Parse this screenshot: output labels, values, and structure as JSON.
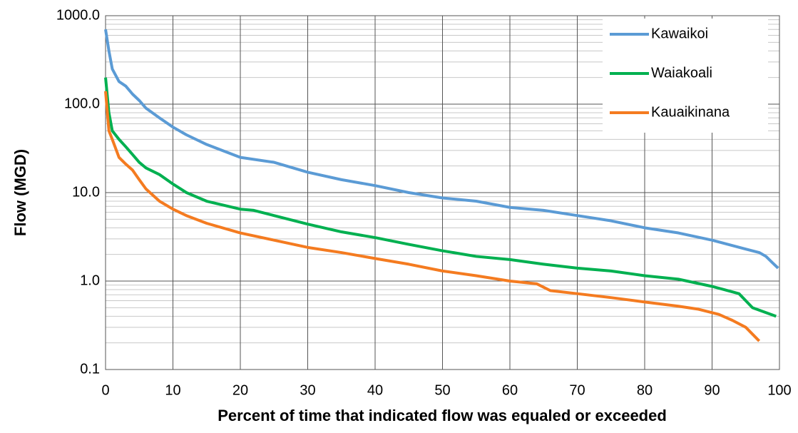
{
  "chart_data": {
    "type": "line",
    "xlabel": "Percent of time that indicated flow was equaled or exceeded",
    "ylabel": "Flow (MGD)",
    "xlim": [
      0,
      100
    ],
    "xticks": [
      0,
      10,
      20,
      30,
      40,
      50,
      60,
      70,
      80,
      90,
      100
    ],
    "ylim": [
      0.1,
      1000
    ],
    "yticks": [
      0.1,
      {
        "value": 1,
        "label": "1.0"
      },
      {
        "value": 10,
        "label": "10.0"
      },
      {
        "value": 100,
        "label": "100.0"
      },
      {
        "value": 1000,
        "label": "1000.0"
      }
    ],
    "ylog": true,
    "grid": true,
    "minor_grid": true,
    "legend": "upper right",
    "series": [
      {
        "name": "Kawaikoi",
        "color": "#5b9bd5",
        "x": [
          0,
          0.5,
          1,
          2,
          3,
          4,
          5,
          6,
          8,
          10,
          12,
          15,
          20,
          25,
          30,
          35,
          40,
          45,
          50,
          55,
          60,
          65,
          70,
          75,
          80,
          85,
          90,
          95,
          97,
          98,
          99,
          99.8
        ],
        "values": [
          700,
          400,
          250,
          180,
          160,
          130,
          110,
          90,
          70,
          55,
          45,
          35,
          25,
          22,
          17,
          14,
          12,
          10,
          8.7,
          8,
          6.8,
          6.3,
          5.5,
          4.8,
          4.0,
          3.5,
          2.9,
          2.3,
          2.1,
          1.9,
          1.6,
          1.4
        ]
      },
      {
        "name": "Waiakoali",
        "color": "#00b050",
        "x": [
          0,
          0.5,
          1,
          2,
          3,
          4,
          5,
          6,
          8,
          10,
          12,
          15,
          20,
          22,
          25,
          30,
          35,
          40,
          45,
          50,
          55,
          60,
          65,
          70,
          75,
          80,
          85,
          90,
          94,
          96,
          99.5
        ],
        "values": [
          200,
          80,
          50,
          40,
          33,
          27,
          22,
          19,
          16,
          12.5,
          10,
          8,
          6.5,
          6.3,
          5.5,
          4.4,
          3.6,
          3.1,
          2.6,
          2.2,
          1.9,
          1.75,
          1.55,
          1.4,
          1.3,
          1.15,
          1.05,
          0.87,
          0.72,
          0.5,
          0.4
        ]
      },
      {
        "name": "Kauaikinana",
        "color": "#f47b20",
        "x": [
          0,
          0.5,
          1,
          2,
          3,
          4,
          5,
          6,
          8,
          10,
          12,
          15,
          20,
          25,
          30,
          35,
          40,
          45,
          50,
          55,
          60,
          64,
          66,
          70,
          75,
          80,
          85,
          88,
          91,
          93,
          95,
          97
        ],
        "values": [
          140,
          50,
          40,
          25,
          21,
          18,
          14,
          11,
          8,
          6.5,
          5.5,
          4.5,
          3.5,
          2.9,
          2.4,
          2.1,
          1.8,
          1.55,
          1.3,
          1.15,
          1.0,
          0.93,
          0.78,
          0.72,
          0.65,
          0.58,
          0.52,
          0.48,
          0.42,
          0.36,
          0.3,
          0.21
        ]
      }
    ]
  }
}
